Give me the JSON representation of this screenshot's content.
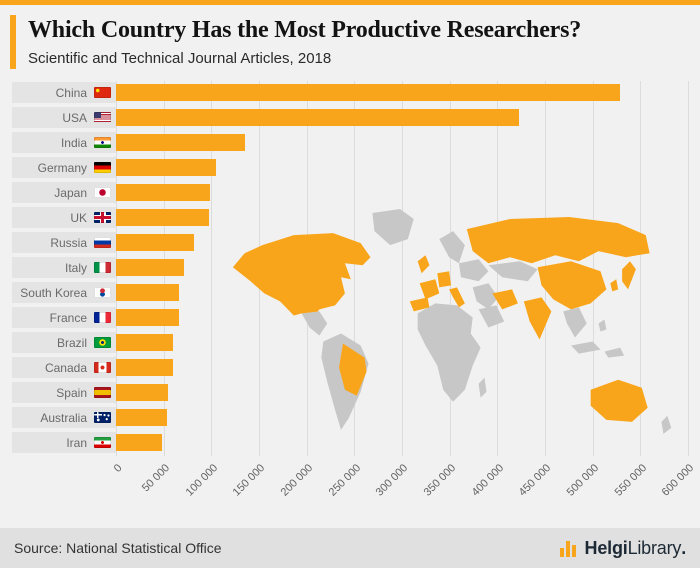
{
  "theme": {
    "accent": "#F9A51B",
    "page_background": "#F1F1F1",
    "footer_background": "#E0E0E0",
    "bar_color": "#F9A51B",
    "map_base_color": "#C7C7C7",
    "map_highlight_color": "#F9A51B"
  },
  "header": {
    "title": "Which Country Has the Most Productive Researchers?",
    "subtitle": "Scientific and Technical Journal Articles, 2018"
  },
  "chart_data": {
    "type": "bar",
    "orientation": "horizontal",
    "title": "Which Country Has the Most Productive Researchers?",
    "subtitle": "Scientific and Technical Journal Articles, 2018",
    "xlim": [
      0,
      600000
    ],
    "grid": true,
    "bar_color": "#F9A51B",
    "categories": [
      "China",
      "USA",
      "India",
      "Germany",
      "Japan",
      "UK",
      "Russia",
      "Italy",
      "South Korea",
      "France",
      "Brazil",
      "Canada",
      "Spain",
      "Australia",
      "Iran"
    ],
    "rows": [
      {
        "country": "China",
        "flag": "cn",
        "value": 528263
      },
      {
        "country": "USA",
        "flag": "us",
        "value": 422808
      },
      {
        "country": "India",
        "flag": "in",
        "value": 135788
      },
      {
        "country": "Germany",
        "flag": "de",
        "value": 104396
      },
      {
        "country": "Japan",
        "flag": "jp",
        "value": 98793
      },
      {
        "country": "UK",
        "flag": "gb",
        "value": 97681
      },
      {
        "country": "Russia",
        "flag": "ru",
        "value": 81579
      },
      {
        "country": "Italy",
        "flag": "it",
        "value": 71240
      },
      {
        "country": "South Korea",
        "flag": "kr",
        "value": 66376
      },
      {
        "country": "France",
        "flag": "fr",
        "value": 66352
      },
      {
        "country": "Brazil",
        "flag": "br",
        "value": 60148
      },
      {
        "country": "Canada",
        "flag": "ca",
        "value": 59968
      },
      {
        "country": "Spain",
        "flag": "es",
        "value": 54537
      },
      {
        "country": "Australia",
        "flag": "au",
        "value": 53610
      },
      {
        "country": "Iran",
        "flag": "ir",
        "value": 48306
      }
    ],
    "x_ticks": [
      {
        "value": 0,
        "label": "0"
      },
      {
        "value": 50000,
        "label": "50 000"
      },
      {
        "value": 100000,
        "label": "100 000"
      },
      {
        "value": 150000,
        "label": "150 000"
      },
      {
        "value": 200000,
        "label": "200 000"
      },
      {
        "value": 250000,
        "label": "250 000"
      },
      {
        "value": 300000,
        "label": "300 000"
      },
      {
        "value": 350000,
        "label": "350 000"
      },
      {
        "value": 400000,
        "label": "400 000"
      },
      {
        "value": 450000,
        "label": "450 000"
      },
      {
        "value": 500000,
        "label": "500 000"
      },
      {
        "value": 550000,
        "label": "550 000"
      },
      {
        "value": 600000,
        "label": "600 000"
      }
    ],
    "map": {
      "highlighted_countries": [
        "Canada",
        "USA",
        "Brazil",
        "UK",
        "France",
        "Spain",
        "Germany",
        "Italy",
        "Russia",
        "Iran",
        "India",
        "China",
        "South Korea",
        "Japan",
        "Australia"
      ]
    }
  },
  "footer": {
    "source": "Source: National Statistical Office",
    "brand_bold": "Helgi",
    "brand_light": "Library",
    "brand_dot": "."
  }
}
